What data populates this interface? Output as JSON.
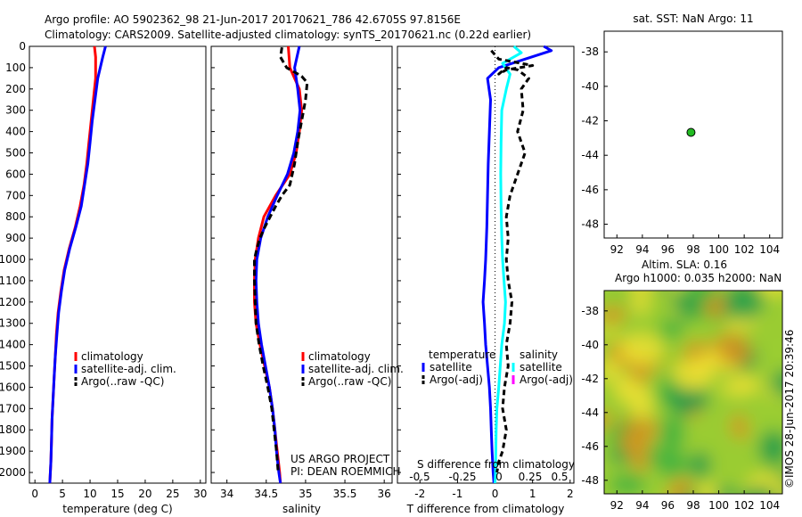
{
  "header": {
    "line1": "Argo profile: AO 5902362_98 21-Jun-2017 20170621_786 42.6705S 97.8156E",
    "line2": "Climatology: CARS2009. Satellite-adjusted climatology: synTS_20170621.nc (0.22d earlier)"
  },
  "credit": {
    "project": "US ARGO PROJECT",
    "pi": "PI: DEAN ROEMMICH",
    "imos": "©IMOS 28-Jun-2017 20:39:46"
  },
  "colors": {
    "climatology": "#ff0000",
    "satellite": "#0000ff",
    "argo": "#000000",
    "sal_satellite": "#00ffff",
    "sal_argo": "#ff00ff",
    "argo_marker": "#22bb22"
  },
  "chart_data": [
    {
      "type": "line",
      "xlabel": "temperature (deg C)",
      "ylabel": "",
      "xlim": [
        -1,
        31
      ],
      "ylim": [
        2050,
        0
      ],
      "xticks": [
        "0",
        "5",
        "10",
        "15",
        "20",
        "25",
        "30"
      ],
      "yticks": [
        "0",
        "100",
        "200",
        "300",
        "400",
        "500",
        "600",
        "700",
        "800",
        "900",
        "1000",
        "1100",
        "1200",
        "1300",
        "1400",
        "1500",
        "1600",
        "1700",
        "1800",
        "1900",
        "2000"
      ],
      "legend": [
        "climatology",
        "satellite-adj. clim.",
        "Argo(..raw -QC)"
      ],
      "series": [
        {
          "name": "climatology",
          "color": "#ff0000",
          "dash": "",
          "x": [
            10.8,
            11,
            11,
            10.6,
            10.2,
            9.8,
            9.4,
            8.9,
            8.2,
            7.3,
            6.2,
            5.3,
            4.7,
            4.2,
            3.9,
            3.7,
            3.5,
            3.3,
            3.1,
            3.0,
            2.9,
            2.8,
            2.7
          ],
          "y": [
            0,
            50,
            150,
            250,
            350,
            450,
            550,
            650,
            750,
            850,
            950,
            1050,
            1150,
            1250,
            1350,
            1450,
            1550,
            1650,
            1750,
            1850,
            1950,
            2000,
            2050
          ]
        },
        {
          "name": "satellite-adj. clim.",
          "color": "#0000ff",
          "dash": "",
          "x": [
            12.8,
            12.3,
            11.4,
            10.9,
            10.4,
            10.0,
            9.6,
            9.0,
            8.4,
            7.4,
            6.3,
            5.4,
            4.8,
            4.3,
            4.0,
            3.7,
            3.5,
            3.3,
            3.1,
            3.0,
            2.9,
            2.8,
            2.7
          ],
          "y": [
            0,
            50,
            150,
            250,
            350,
            450,
            550,
            650,
            750,
            850,
            950,
            1050,
            1150,
            1250,
            1350,
            1450,
            1550,
            1650,
            1750,
            1850,
            1950,
            2000,
            2050
          ]
        }
      ]
    },
    {
      "type": "line",
      "xlabel": "salinity",
      "ylabel": "",
      "xlim": [
        33.8,
        36.1
      ],
      "ylim": [
        2050,
        0
      ],
      "xticks": [
        "34",
        "34.5",
        "35",
        "35.5",
        "36"
      ],
      "legend": [
        "climatology",
        "satellite-adj. clim.",
        "Argo(..raw -QC)"
      ],
      "series": [
        {
          "name": "climatology",
          "color": "#ff0000",
          "dash": "",
          "x": [
            34.78,
            34.8,
            34.92,
            34.95,
            34.92,
            34.88,
            34.8,
            34.62,
            34.47,
            34.4,
            34.36,
            34.35,
            34.35,
            34.37,
            34.42,
            34.48,
            34.54,
            34.58,
            34.61,
            34.64,
            34.67,
            34.68
          ],
          "y": [
            0,
            100,
            200,
            300,
            400,
            500,
            600,
            700,
            800,
            900,
            1000,
            1100,
            1200,
            1300,
            1400,
            1500,
            1600,
            1700,
            1800,
            1900,
            2000,
            2050
          ]
        },
        {
          "name": "satellite-adj. clim.",
          "color": "#0000ff",
          "dash": "",
          "x": [
            34.92,
            34.86,
            34.9,
            34.93,
            34.9,
            34.85,
            34.77,
            34.64,
            34.52,
            34.43,
            34.38,
            34.37,
            34.38,
            34.4,
            34.44,
            34.49,
            34.54,
            34.58,
            34.61,
            34.63,
            34.66,
            34.68
          ],
          "y": [
            0,
            100,
            200,
            300,
            400,
            500,
            600,
            700,
            800,
            900,
            1000,
            1100,
            1200,
            1300,
            1400,
            1500,
            1600,
            1700,
            1800,
            1900,
            2000,
            2050
          ]
        },
        {
          "name": "Argo(..raw -QC)",
          "color": "#000000",
          "dash": "7,4",
          "x": [
            34.7,
            34.68,
            34.76,
            34.95,
            35.02,
            35.0,
            34.95,
            34.9,
            34.86,
            34.8,
            34.7,
            34.62,
            34.55,
            34.48,
            34.42,
            34.38,
            34.35,
            34.35,
            34.36,
            34.37,
            34.41,
            34.46,
            34.52,
            34.57,
            34.6,
            34.63,
            34.65
          ],
          "y": [
            5,
            50,
            100,
            140,
            170,
            250,
            350,
            450,
            550,
            650,
            700,
            750,
            800,
            850,
            900,
            950,
            1000,
            1100,
            1200,
            1300,
            1400,
            1500,
            1600,
            1700,
            1800,
            1900,
            1990
          ]
        }
      ]
    },
    {
      "type": "line",
      "xlabel": "T difference from climatology",
      "title": "S difference from climatology",
      "xlim": [
        -2.6,
        2.1
      ],
      "ylim": [
        2050,
        0
      ],
      "xticks": [
        "-2",
        "-1",
        "0",
        "1",
        "2"
      ],
      "top_xticks": [
        "-0.5",
        "-0.25",
        "0",
        "0.25",
        "0.5"
      ],
      "legend_groups": [
        "temperature",
        "salinity"
      ],
      "legend": [
        "satellite",
        "Argo(-adj)",
        "satellite",
        "Argo(-adj)"
      ],
      "series": [
        {
          "name": "satellite",
          "color": "#0000ff",
          "dash": "",
          "x": [
            1.3,
            1.5,
            0.8,
            0.1,
            -0.2,
            -0.12,
            -0.15,
            -0.18,
            -0.2,
            -0.22,
            -0.25,
            -0.28,
            -0.32,
            -0.28,
            -0.25,
            -0.2,
            -0.15,
            -0.12,
            -0.1,
            -0.08,
            -0.05,
            -0.03
          ],
          "y": [
            0,
            20,
            60,
            100,
            150,
            250,
            400,
            550,
            700,
            850,
            1000,
            1100,
            1200,
            1300,
            1400,
            1500,
            1600,
            1700,
            1800,
            1900,
            2000,
            2050
          ]
        },
        {
          "name": "satellite",
          "color": "#00ffff",
          "dash": "",
          "x": [
            0.5,
            0.7,
            0.2,
            0.4,
            0.3,
            0.18,
            0.16,
            0.15,
            0.16,
            0.18,
            0.2,
            0.24,
            0.28,
            0.25,
            0.18,
            0.14,
            0.1,
            0.05,
            0.03,
            0.02,
            0.01,
            0.0
          ],
          "y": [
            0,
            30,
            80,
            130,
            200,
            300,
            450,
            600,
            750,
            900,
            1000,
            1100,
            1200,
            1300,
            1400,
            1500,
            1600,
            1700,
            1800,
            1900,
            2000,
            2050
          ]
        },
        {
          "name": "Argo(-adj)",
          "color": "#000000",
          "dash": "6,4",
          "x": [
            -0.1,
            0.1,
            1.0,
            0.3,
            0.1,
            0.3,
            0.6,
            0.9,
            0.7,
            0.75,
            0.6,
            0.8,
            0.6,
            0.4,
            0.3,
            0.35,
            0.3,
            0.35,
            0.45,
            0.4,
            0.3,
            0.35,
            0.25,
            0.2,
            0.3,
            0.2,
            0.1,
            0.05
          ],
          "y": [
            20,
            60,
            90,
            110,
            130,
            100,
            110,
            150,
            200,
            300,
            400,
            500,
            600,
            700,
            800,
            900,
            1000,
            1100,
            1200,
            1300,
            1400,
            1500,
            1600,
            1700,
            1800,
            1900,
            1950,
            2000
          ]
        }
      ]
    },
    {
      "type": "scatter",
      "title": "sat. SST: NaN Argo: 11",
      "xlim": [
        91,
        105
      ],
      "ylim": [
        -48.8,
        -36.8
      ],
      "xticks": [
        "92",
        "94",
        "96",
        "98",
        "100",
        "102",
        "104"
      ],
      "yticks": [
        "-38",
        "-40",
        "-42",
        "-44",
        "-46",
        "-48"
      ],
      "points": [
        {
          "x": 97.82,
          "y": -42.67
        }
      ]
    },
    {
      "type": "heatmap",
      "title_line1": "Altim. SLA: 0.16",
      "title_line2": "Argo h1000: 0.035 h2000: NaN",
      "xlim": [
        91,
        105
      ],
      "ylim": [
        -48.8,
        -36.8
      ],
      "xticks": [
        "92",
        "94",
        "96",
        "98",
        "100",
        "102",
        "104"
      ],
      "yticks": [
        "-38",
        "-40",
        "-42",
        "-44",
        "-46",
        "-48"
      ],
      "colormap": [
        "#d89020",
        "#f0e030",
        "#9acc30",
        "#3cb040",
        "#1a9a4a"
      ]
    }
  ]
}
